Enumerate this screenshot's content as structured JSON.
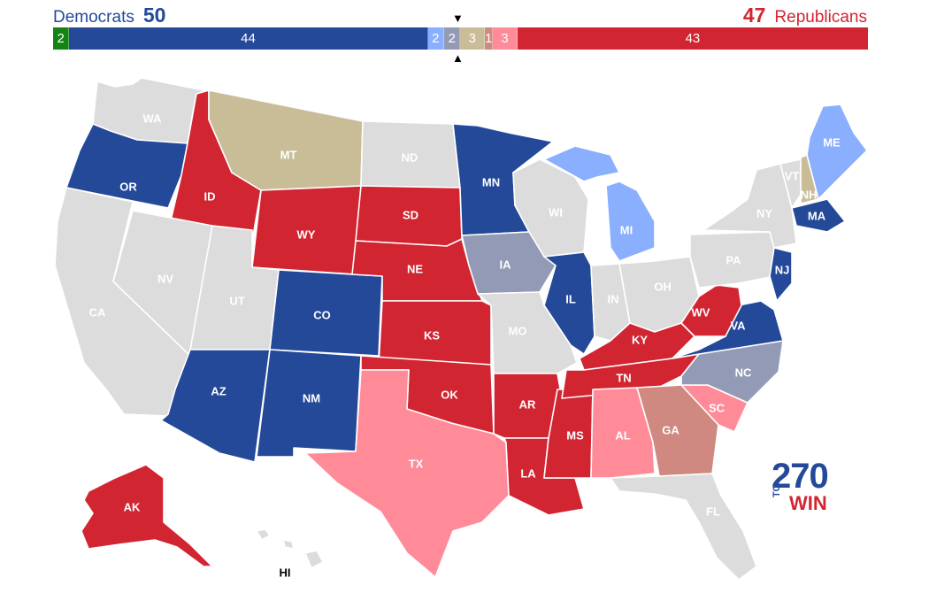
{
  "header": {
    "dem_label": "Democrats",
    "dem_total": "50",
    "rep_label": "Republicans",
    "rep_total": "47"
  },
  "colors": {
    "dem_safe": "#244999",
    "dem_likely": "#8aafff",
    "rep_safe": "#d22532",
    "rep_likely": "#ff8b98",
    "rep_lean": "#cf8980",
    "toss_up": "#c9bd98",
    "no_election": "#dcdcdc",
    "independent": "#138413",
    "undecided_gray": "#939ab5"
  },
  "seat_bar": [
    {
      "label": "2",
      "seats": 2,
      "color": "#138413"
    },
    {
      "label": "44",
      "seats": 44,
      "color": "#244999"
    },
    {
      "label": "2",
      "seats": 2,
      "color": "#8aafff"
    },
    {
      "label": "2",
      "seats": 2,
      "color": "#939ab5"
    },
    {
      "label": "3",
      "seats": 3,
      "color": "#c9bd98"
    },
    {
      "label": "1",
      "seats": 1,
      "color": "#cf8980"
    },
    {
      "label": "3",
      "seats": 3,
      "color": "#ff8b98"
    },
    {
      "label": "43",
      "seats": 43,
      "color": "#d22532"
    }
  ],
  "states": [
    {
      "abbr": "WA",
      "color": "#dcdcdc"
    },
    {
      "abbr": "OR",
      "color": "#244999"
    },
    {
      "abbr": "CA",
      "color": "#dcdcdc"
    },
    {
      "abbr": "ID",
      "color": "#d22532"
    },
    {
      "abbr": "NV",
      "color": "#dcdcdc"
    },
    {
      "abbr": "MT",
      "color": "#c9bd98"
    },
    {
      "abbr": "WY",
      "color": "#d22532"
    },
    {
      "abbr": "UT",
      "color": "#dcdcdc"
    },
    {
      "abbr": "AZ",
      "color": "#244999"
    },
    {
      "abbr": "CO",
      "color": "#244999"
    },
    {
      "abbr": "NM",
      "color": "#244999"
    },
    {
      "abbr": "ND",
      "color": "#dcdcdc"
    },
    {
      "abbr": "SD",
      "color": "#d22532"
    },
    {
      "abbr": "NE",
      "color": "#d22532"
    },
    {
      "abbr": "KS",
      "color": "#d22532"
    },
    {
      "abbr": "OK",
      "color": "#d22532"
    },
    {
      "abbr": "TX",
      "color": "#ff8b98"
    },
    {
      "abbr": "MN",
      "color": "#244999"
    },
    {
      "abbr": "IA",
      "color": "#939ab5"
    },
    {
      "abbr": "MO",
      "color": "#dcdcdc"
    },
    {
      "abbr": "AR",
      "color": "#d22532"
    },
    {
      "abbr": "LA",
      "color": "#d22532"
    },
    {
      "abbr": "WI",
      "color": "#dcdcdc"
    },
    {
      "abbr": "IL",
      "color": "#244999"
    },
    {
      "abbr": "MS",
      "color": "#d22532"
    },
    {
      "abbr": "MI",
      "color": "#8aafff"
    },
    {
      "abbr": "IN",
      "color": "#dcdcdc"
    },
    {
      "abbr": "OH",
      "color": "#dcdcdc"
    },
    {
      "abbr": "KY",
      "color": "#d22532"
    },
    {
      "abbr": "TN",
      "color": "#d22532"
    },
    {
      "abbr": "AL",
      "color": "#ff8b98"
    },
    {
      "abbr": "GA",
      "color": "#cf8980"
    },
    {
      "abbr": "FL",
      "color": "#dcdcdc"
    },
    {
      "abbr": "SC",
      "color": "#ff8b98"
    },
    {
      "abbr": "NC",
      "color": "#939ab5"
    },
    {
      "abbr": "VA",
      "color": "#244999"
    },
    {
      "abbr": "WV",
      "color": "#d22532"
    },
    {
      "abbr": "PA",
      "color": "#dcdcdc"
    },
    {
      "abbr": "NY",
      "color": "#dcdcdc"
    },
    {
      "abbr": "NJ",
      "color": "#244999"
    },
    {
      "abbr": "MA",
      "color": "#244999"
    },
    {
      "abbr": "VT",
      "color": "#dcdcdc"
    },
    {
      "abbr": "NH",
      "color": "#c9bd98"
    },
    {
      "abbr": "ME",
      "color": "#8aafff"
    },
    {
      "abbr": "AK",
      "color": "#d22532"
    },
    {
      "abbr": "HI",
      "color": "#dcdcdc"
    }
  ],
  "logo": {
    "number": "270",
    "to": "TO",
    "win": "WIN"
  }
}
